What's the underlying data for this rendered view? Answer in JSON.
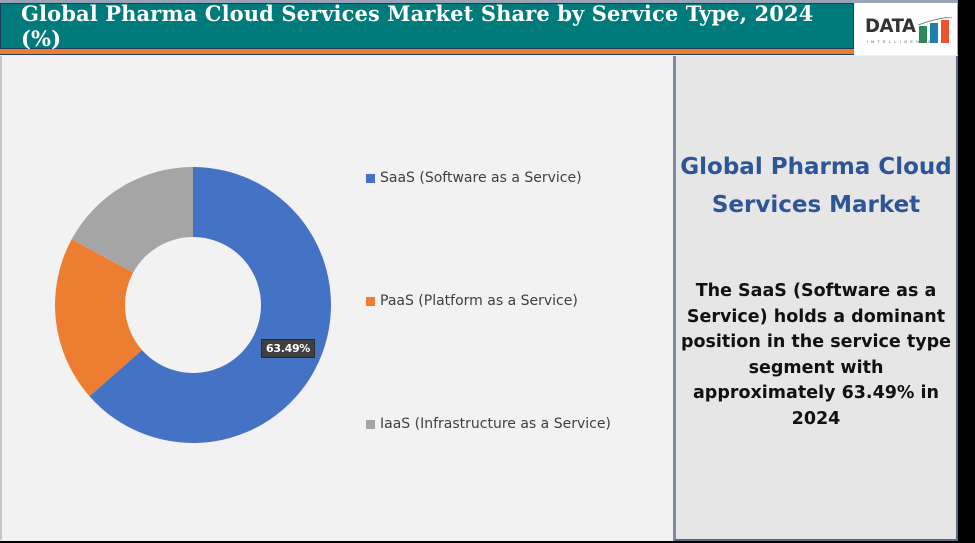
{
  "header": {
    "title": "Global Pharma Cloud Services Market Share by Service Type, 2024 (%)",
    "logo_text": "DATA",
    "logo_subtext": "INTELLIGENCE"
  },
  "colors": {
    "header_bg": "#007b7b",
    "accent_bar": "#ed7d31",
    "saas": "#4472c4",
    "paas": "#ed7d31",
    "iaas": "#a5a5a5",
    "panel_title": "#2e5597"
  },
  "legend": [
    {
      "label": "SaaS (Software as a Service)",
      "color": "#4472c4"
    },
    {
      "label": "PaaS (Platform as a Service)",
      "color": "#ed7d31"
    },
    {
      "label": "IaaS (Infrastructure as a Service)",
      "color": "#a5a5a5"
    }
  ],
  "data_label": "63.49%",
  "side_panel": {
    "title": "Global Pharma Cloud Services Market",
    "body": "The SaaS (Software as a Service) holds a dominant position in the service type segment with approximately 63.49% in 2024"
  },
  "chart_data": {
    "type": "pie",
    "variant": "donut",
    "title": "Global Pharma Cloud Services Market Share by Service Type, 2024 (%)",
    "categories": [
      "SaaS (Software as a Service)",
      "PaaS (Platform as a Service)",
      "IaaS (Infrastructure as a Service)"
    ],
    "values": [
      63.49,
      19.4,
      17.1
    ],
    "colors": [
      "#4472c4",
      "#ed7d31",
      "#a5a5a5"
    ],
    "data_labels": {
      "SaaS (Software as a Service)": "63.49%"
    },
    "start_angle_deg": 0,
    "direction": "clockwise",
    "legend_position": "right",
    "unit": "%"
  }
}
